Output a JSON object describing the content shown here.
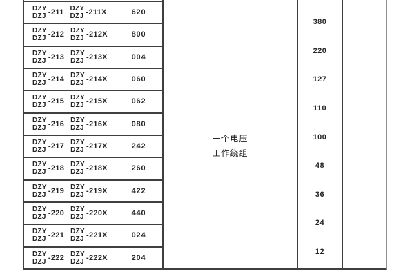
{
  "table": {
    "model_prefix_top": "DZY",
    "model_prefix_bottom": "DZJ",
    "rows": [
      {
        "model_suffix": "-211",
        "variant_suffix": "-211X",
        "code": "620"
      },
      {
        "model_suffix": "-212",
        "variant_suffix": "-212X",
        "code": "800"
      },
      {
        "model_suffix": "-213",
        "variant_suffix": "-213X",
        "code": "004"
      },
      {
        "model_suffix": "-214",
        "variant_suffix": "-214X",
        "code": "060"
      },
      {
        "model_suffix": "-215",
        "variant_suffix": "-215X",
        "code": "062"
      },
      {
        "model_suffix": "-216",
        "variant_suffix": "-216X",
        "code": "080"
      },
      {
        "model_suffix": "-217",
        "variant_suffix": "-217X",
        "code": "242"
      },
      {
        "model_suffix": "-218",
        "variant_suffix": "-218X",
        "code": "260"
      },
      {
        "model_suffix": "-219",
        "variant_suffix": "-219X",
        "code": "422"
      },
      {
        "model_suffix": "-220",
        "variant_suffix": "-220X",
        "code": "440"
      },
      {
        "model_suffix": "-221",
        "variant_suffix": "-221X",
        "code": "024"
      },
      {
        "model_suffix": "-222",
        "variant_suffix": "-222X",
        "code": "204"
      }
    ]
  },
  "winding": {
    "line1": "一个电压",
    "line2": "工作绕组"
  },
  "voltages": [
    "380",
    "220",
    "127",
    "110",
    "100",
    "48",
    "36",
    "24",
    "12"
  ],
  "colors": {
    "border_dark": "#3f3f3f",
    "border_right_gray": "#8f8f8f",
    "text": "#242424",
    "background": "#ffffff"
  }
}
